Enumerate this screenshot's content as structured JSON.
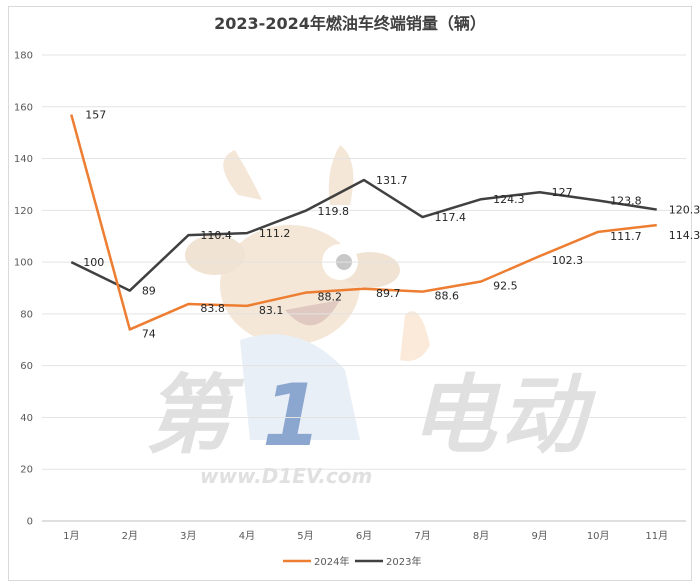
{
  "chart_data": {
    "type": "line",
    "title": "2023-2024年燃油车终端销量（辆）",
    "xlabel": "",
    "ylabel": "",
    "ylim": [
      0,
      180
    ],
    "yticks": [
      "0",
      "20",
      "40",
      "60",
      "80",
      "100",
      "120",
      "140",
      "160",
      "180"
    ],
    "categories": [
      "1月",
      "2月",
      "3月",
      "4月",
      "5月",
      "6月",
      "7月",
      "8月",
      "9月",
      "10月",
      "11月"
    ],
    "series": [
      {
        "name": "2024年",
        "color": "#ed7d31",
        "values": [
          157,
          74,
          83.8,
          83.1,
          88.2,
          89.7,
          88.6,
          92.5,
          102.3,
          111.7,
          114.3
        ]
      },
      {
        "name": "2023年",
        "color": "#404040",
        "values": [
          100,
          89,
          110.4,
          111.2,
          119.8,
          131.7,
          117.4,
          124.3,
          127,
          123.8,
          120.3
        ]
      }
    ],
    "grid": true,
    "legend": "bottom"
  },
  "watermark": {
    "chars": [
      "第",
      "1",
      "电",
      "动"
    ],
    "url": "www.D1EV.com"
  }
}
